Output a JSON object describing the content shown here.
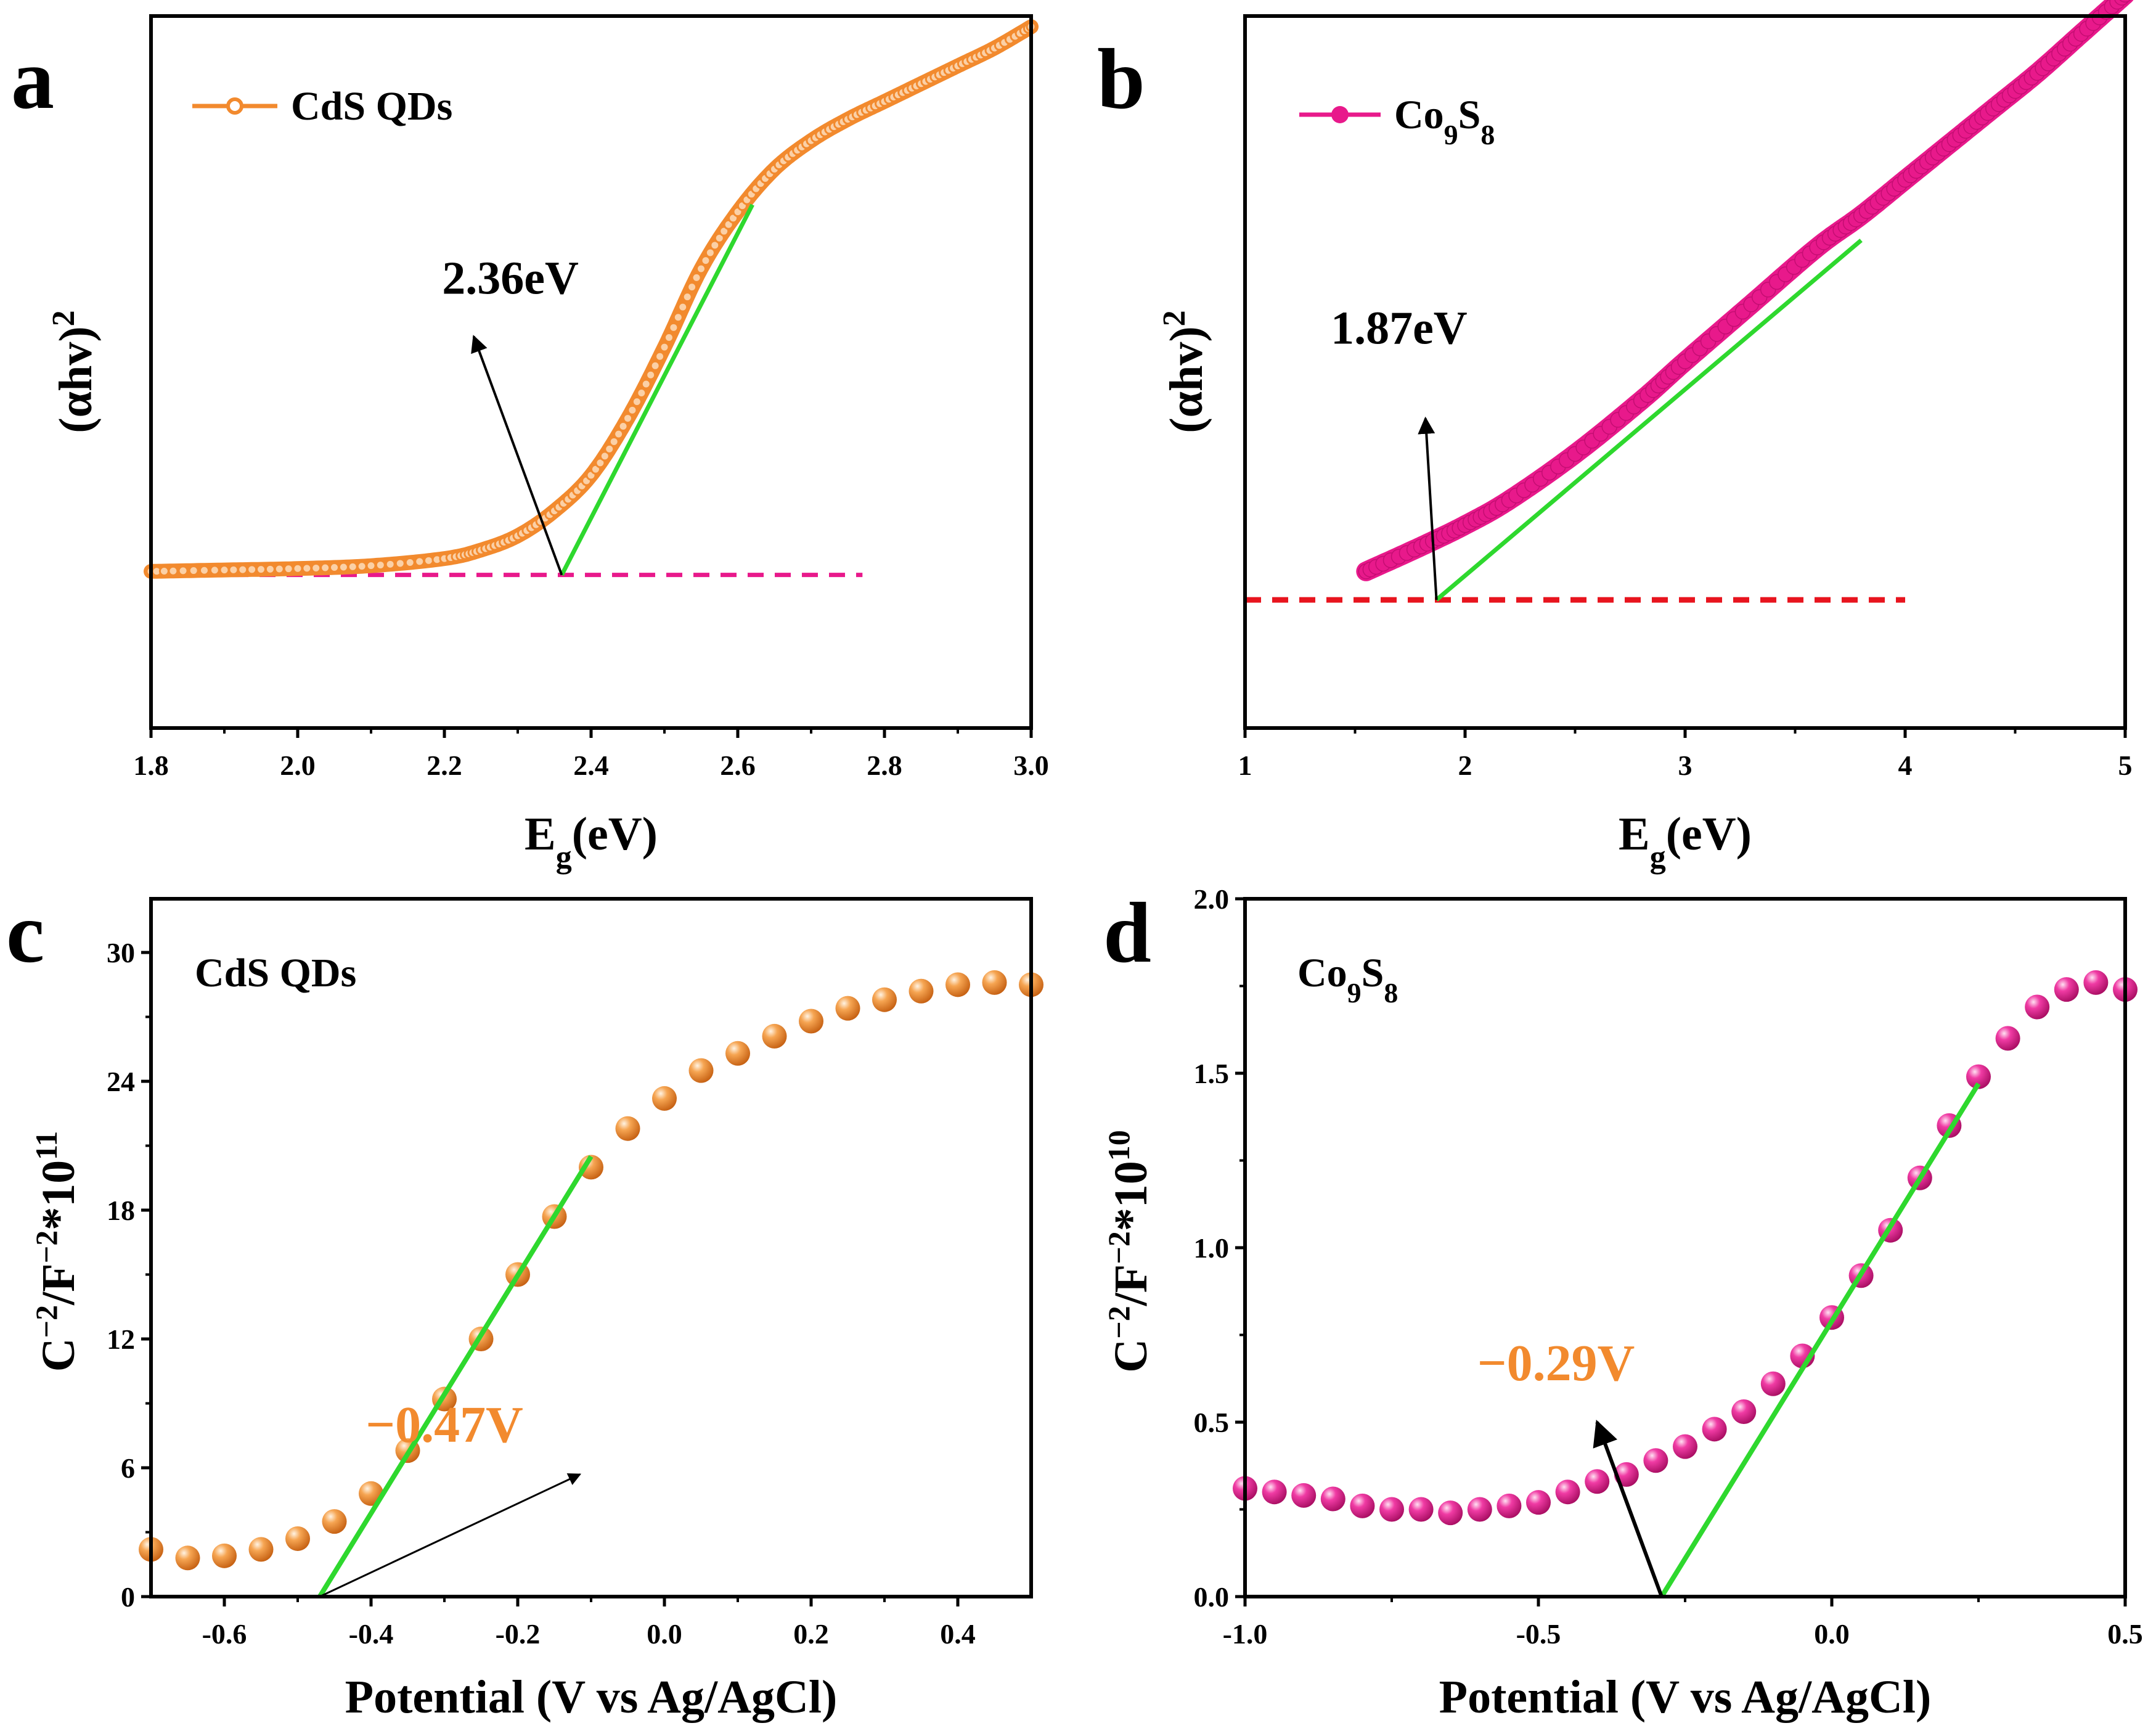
{
  "chart_data": [
    {
      "id": "a",
      "type": "line",
      "panel_label": "a",
      "title": "",
      "xlabel": "E",
      "xlabel_sub": "g",
      "xlabel_tail": "(eV)",
      "ylabel": "(αhv)",
      "ylabel_sup": "2",
      "xlim": [
        1.8,
        3.0
      ],
      "ylim": [
        0,
        10
      ],
      "xticks": [
        1.8,
        2.0,
        2.2,
        2.4,
        2.6,
        2.8,
        3.0
      ],
      "xtick_labels": [
        "1.8",
        "2.0",
        "2.2",
        "2.4",
        "2.6",
        "2.8",
        "3.0"
      ],
      "yticks": [],
      "ytick_labels": [],
      "y_axis_side": "left",
      "legend": "CdS QDs",
      "legend_position": "top-left",
      "series": [
        {
          "name": "CdS QDs",
          "color": "#f28a2e",
          "marker": "open-circle",
          "x": [
            1.8,
            1.9,
            2.0,
            2.1,
            2.2,
            2.25,
            2.3,
            2.35,
            2.4,
            2.45,
            2.5,
            2.55,
            2.6,
            2.65,
            2.7,
            2.75,
            2.8,
            2.85,
            2.9,
            2.95,
            3.0
          ],
          "y": [
            2.2,
            2.22,
            2.24,
            2.28,
            2.38,
            2.5,
            2.7,
            3.05,
            3.55,
            4.35,
            5.35,
            6.45,
            7.25,
            7.85,
            8.25,
            8.55,
            8.8,
            9.05,
            9.3,
            9.55,
            9.85
          ]
        }
      ],
      "baseline": {
        "y": 2.15,
        "x_range": [
          1.8,
          2.77
        ],
        "color": "#e8198b"
      },
      "fit_line": {
        "x": [
          2.36,
          2.62
        ],
        "y": [
          2.15,
          7.35
        ],
        "color": "#2ed82e"
      },
      "annotation": {
        "text": "2.36eV",
        "color": "#000000",
        "arrow_from": [
          2.36,
          2.15
        ],
        "arrow_to": [
          2.24,
          5.5
        ],
        "text_at": [
          2.29,
          6.1
        ]
      }
    },
    {
      "id": "b",
      "type": "line",
      "panel_label": "b",
      "title": "",
      "xlabel": "E",
      "xlabel_sub": "g",
      "xlabel_tail": "(eV)",
      "ylabel": "(αhv)",
      "ylabel_sup": "2",
      "xlim": [
        1,
        5
      ],
      "ylim": [
        0,
        10
      ],
      "xticks": [
        1,
        2,
        3,
        4,
        5
      ],
      "xtick_labels": [
        "1",
        "2",
        "3",
        "4",
        "5"
      ],
      "yticks": [],
      "ytick_labels": [],
      "y_axis_side": "left",
      "legend": "Co",
      "legend_sub1": "9",
      "legend_mid": "S",
      "legend_sub2": "8",
      "legend_position": "top-left",
      "series": [
        {
          "name": "Co9S8",
          "color": "#e8198b",
          "marker": "filled-circle",
          "x": [
            1.55,
            1.8,
            2.0,
            2.2,
            2.5,
            2.8,
            3.0,
            3.3,
            3.6,
            3.8,
            4.0,
            4.2,
            4.4,
            4.6,
            4.8,
            5.0
          ],
          "y": [
            2.2,
            2.55,
            2.85,
            3.2,
            3.85,
            4.6,
            5.15,
            5.95,
            6.75,
            7.2,
            7.7,
            8.2,
            8.7,
            9.2,
            9.75,
            10.3
          ]
        }
      ],
      "baseline": {
        "y": 1.8,
        "x_range": [
          1.0,
          4.0
        ],
        "color": "#e8141e"
      },
      "fit_line": {
        "x": [
          1.87,
          3.8
        ],
        "y": [
          1.8,
          6.85
        ],
        "color": "#2ed82e"
      },
      "annotation": {
        "text": "1.87eV",
        "color": "#000000",
        "arrow_from": [
          1.87,
          1.8
        ],
        "arrow_to": [
          1.82,
          4.35
        ],
        "text_at": [
          1.7,
          5.4
        ]
      }
    },
    {
      "id": "c",
      "type": "scatter",
      "panel_label": "c",
      "title": "CdS QDs",
      "xlabel": "Potential (V vs Ag/AgCl)",
      "ylabel": "C",
      "ylabel_sup1": "−2",
      "ylabel_mid": "/F",
      "ylabel_sup2": "−2",
      "ylabel_tail": "*10",
      "ylabel_sup3": "11",
      "xlim": [
        -0.7,
        0.5
      ],
      "ylim": [
        0,
        32.5
      ],
      "xticks": [
        -0.6,
        -0.4,
        -0.2,
        0.0,
        0.2,
        0.4
      ],
      "xtick_labels": [
        "-0.6",
        "-0.4",
        "-0.2",
        "0.0",
        "0.2",
        "0.4"
      ],
      "yticks": [
        0,
        6,
        12,
        18,
        24,
        30
      ],
      "ytick_labels": [
        "0",
        "6",
        "12",
        "18",
        "24",
        "30"
      ],
      "y_axis_side": "left",
      "series": [
        {
          "name": "CdS QDs",
          "color": "#f28a2e",
          "marker": "sphere",
          "x": [
            -0.7,
            -0.65,
            -0.6,
            -0.55,
            -0.5,
            -0.45,
            -0.4,
            -0.35,
            -0.3,
            -0.25,
            -0.2,
            -0.15,
            -0.1,
            -0.05,
            0.0,
            0.05,
            0.1,
            0.15,
            0.2,
            0.25,
            0.3,
            0.35,
            0.4,
            0.45,
            0.5
          ],
          "y": [
            2.2,
            1.8,
            1.9,
            2.2,
            2.7,
            3.5,
            4.8,
            6.8,
            9.2,
            12.0,
            15.0,
            17.7,
            20.0,
            21.8,
            23.2,
            24.5,
            25.3,
            26.1,
            26.8,
            27.4,
            27.8,
            28.2,
            28.5,
            28.6,
            28.5
          ]
        }
      ],
      "fit_line": {
        "x": [
          -0.47,
          -0.1
        ],
        "y": [
          0,
          20.5
        ],
        "color": "#2ed82e"
      },
      "annotation": {
        "text": "−0.47V",
        "color": "#f28a2e",
        "arrow_from": [
          -0.47,
          0
        ],
        "arrow_to": [
          -0.115,
          5.7
        ],
        "text_at": [
          -0.3,
          7.2
        ]
      }
    },
    {
      "id": "d",
      "type": "scatter",
      "panel_label": "d",
      "title": "Co",
      "title_sub1": "9",
      "title_mid": "S",
      "title_sub2": "8",
      "xlabel": "Potential (V vs Ag/AgCl)",
      "ylabel": "C",
      "ylabel_sup1": "−2",
      "ylabel_mid": "/F",
      "ylabel_sup2": "−2",
      "ylabel_tail": "*10",
      "ylabel_sup3": "10",
      "xlim": [
        -1.0,
        0.5
      ],
      "ylim": [
        0,
        2.0
      ],
      "xticks": [
        -1.0,
        -0.5,
        0.0,
        0.5
      ],
      "xtick_labels": [
        "-1.0",
        "-0.5",
        "0.0",
        "0.5"
      ],
      "yticks": [
        0.0,
        0.5,
        1.0,
        1.5,
        2.0
      ],
      "ytick_labels": [
        "0.0",
        "0.5",
        "1.0",
        "1.5",
        "2.0"
      ],
      "y_axis_side": "left",
      "series": [
        {
          "name": "Co9S8",
          "color": "#e8198b",
          "marker": "sphere",
          "x": [
            -1.0,
            -0.95,
            -0.9,
            -0.85,
            -0.8,
            -0.75,
            -0.7,
            -0.65,
            -0.6,
            -0.55,
            -0.5,
            -0.45,
            -0.4,
            -0.35,
            -0.3,
            -0.25,
            -0.2,
            -0.15,
            -0.1,
            -0.05,
            0.0,
            0.05,
            0.1,
            0.15,
            0.2,
            0.25,
            0.3,
            0.35,
            0.4,
            0.45,
            0.5
          ],
          "y": [
            0.31,
            0.3,
            0.29,
            0.28,
            0.26,
            0.25,
            0.25,
            0.24,
            0.25,
            0.26,
            0.27,
            0.3,
            0.33,
            0.35,
            0.39,
            0.43,
            0.48,
            0.53,
            0.61,
            0.69,
            0.8,
            0.92,
            1.05,
            1.2,
            1.35,
            1.49,
            1.6,
            1.69,
            1.74,
            1.76,
            1.74
          ]
        }
      ],
      "fit_line": {
        "x": [
          -0.29,
          0.25
        ],
        "y": [
          0,
          1.47
        ],
        "color": "#2ed82e"
      },
      "annotation": {
        "text": "−0.29V",
        "color": "#f28a2e",
        "arrow_from": [
          -0.29,
          0
        ],
        "arrow_to": [
          -0.4,
          0.5
        ],
        "text_at": [
          -0.47,
          0.62
        ]
      }
    }
  ]
}
